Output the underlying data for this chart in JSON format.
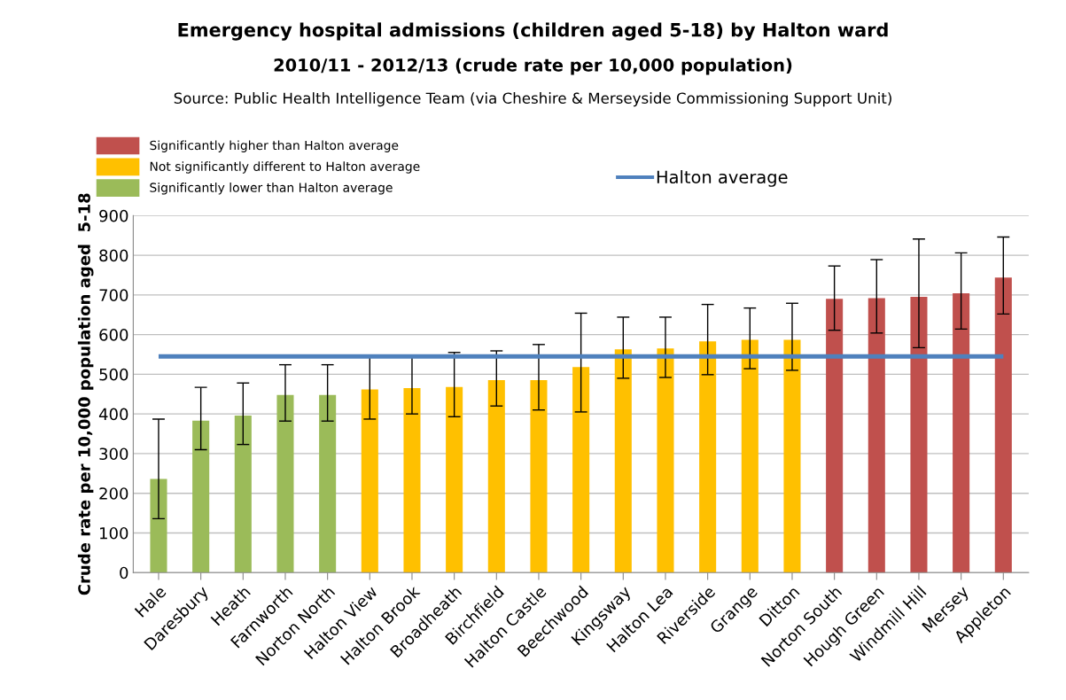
{
  "chart_data": {
    "type": "bar",
    "title": "Emergency hospital admissions (children aged 5-18) by Halton ward",
    "subtitle": "2010/11 - 2012/13 (crude rate per 10,000 population)",
    "annotations": [
      "Source: Public Health Intelligence Team (via Cheshire & Merseyside Commissioning Support Unit)"
    ],
    "ylabel": "Crude rate per 10,000 population aged  5-18",
    "categories": [
      "Hale",
      "Daresbury",
      "Heath",
      "Farnworth",
      "Norton North",
      "Halton View",
      "Halton Brook",
      "Broadheath",
      "Birchfield",
      "Halton Castle",
      "Beechwood",
      "Kingsway",
      "Halton Lea",
      "Riverside",
      "Grange",
      "Ditton",
      "Norton South",
      "Hough Green",
      "Windmill Hill",
      "Mersey",
      "Appleton"
    ],
    "series": [
      {
        "name": "Significantly higher than Halton average",
        "color": "#c0504d",
        "values": [
          null,
          null,
          null,
          null,
          null,
          null,
          null,
          null,
          null,
          null,
          null,
          null,
          null,
          null,
          null,
          null,
          690,
          692,
          695,
          704,
          744
        ],
        "errors": [
          null,
          null,
          null,
          null,
          null,
          null,
          null,
          null,
          null,
          null,
          null,
          null,
          null,
          null,
          null,
          null,
          [
            611,
            773
          ],
          [
            604,
            789
          ],
          [
            567,
            841
          ],
          [
            614,
            806
          ],
          [
            652,
            846
          ]
        ]
      },
      {
        "name": "Not significantly different to Halton average",
        "color": "#ffc000",
        "values": [
          null,
          null,
          null,
          null,
          null,
          462,
          465,
          468,
          485,
          485,
          518,
          563,
          565,
          583,
          587,
          587,
          null,
          null,
          null,
          null,
          null
        ],
        "errors": [
          null,
          null,
          null,
          null,
          null,
          [
            387,
            545
          ],
          [
            400,
            545
          ],
          [
            393,
            555
          ],
          [
            420,
            559
          ],
          [
            410,
            575
          ],
          [
            405,
            654
          ],
          [
            490,
            644
          ],
          [
            492,
            644
          ],
          [
            499,
            676
          ],
          [
            514,
            667
          ],
          [
            510,
            679
          ],
          null,
          null,
          null,
          null,
          null
        ]
      },
      {
        "name": "Significantly lower than Halton average",
        "color": "#9bbb59",
        "values": [
          236,
          383,
          396,
          448,
          448,
          null,
          null,
          null,
          null,
          null,
          null,
          null,
          null,
          null,
          null,
          null,
          null,
          null,
          null,
          null,
          null
        ],
        "errors": [
          [
            136,
            387
          ],
          [
            310,
            467
          ],
          [
            323,
            478
          ],
          [
            382,
            524
          ],
          [
            382,
            524
          ],
          null,
          null,
          null,
          null,
          null,
          null,
          null,
          null,
          null,
          null,
          null,
          null,
          null,
          null,
          null,
          null
        ]
      }
    ],
    "ref_lines": [
      {
        "axis": "y",
        "value": 545,
        "label": "Halton average",
        "color": "#4f81bd"
      }
    ],
    "ylim": [
      0,
      900
    ],
    "yticks": [
      0,
      100,
      200,
      300,
      400,
      500,
      600,
      700,
      800,
      900
    ],
    "grid": "y",
    "legend": "top left"
  }
}
